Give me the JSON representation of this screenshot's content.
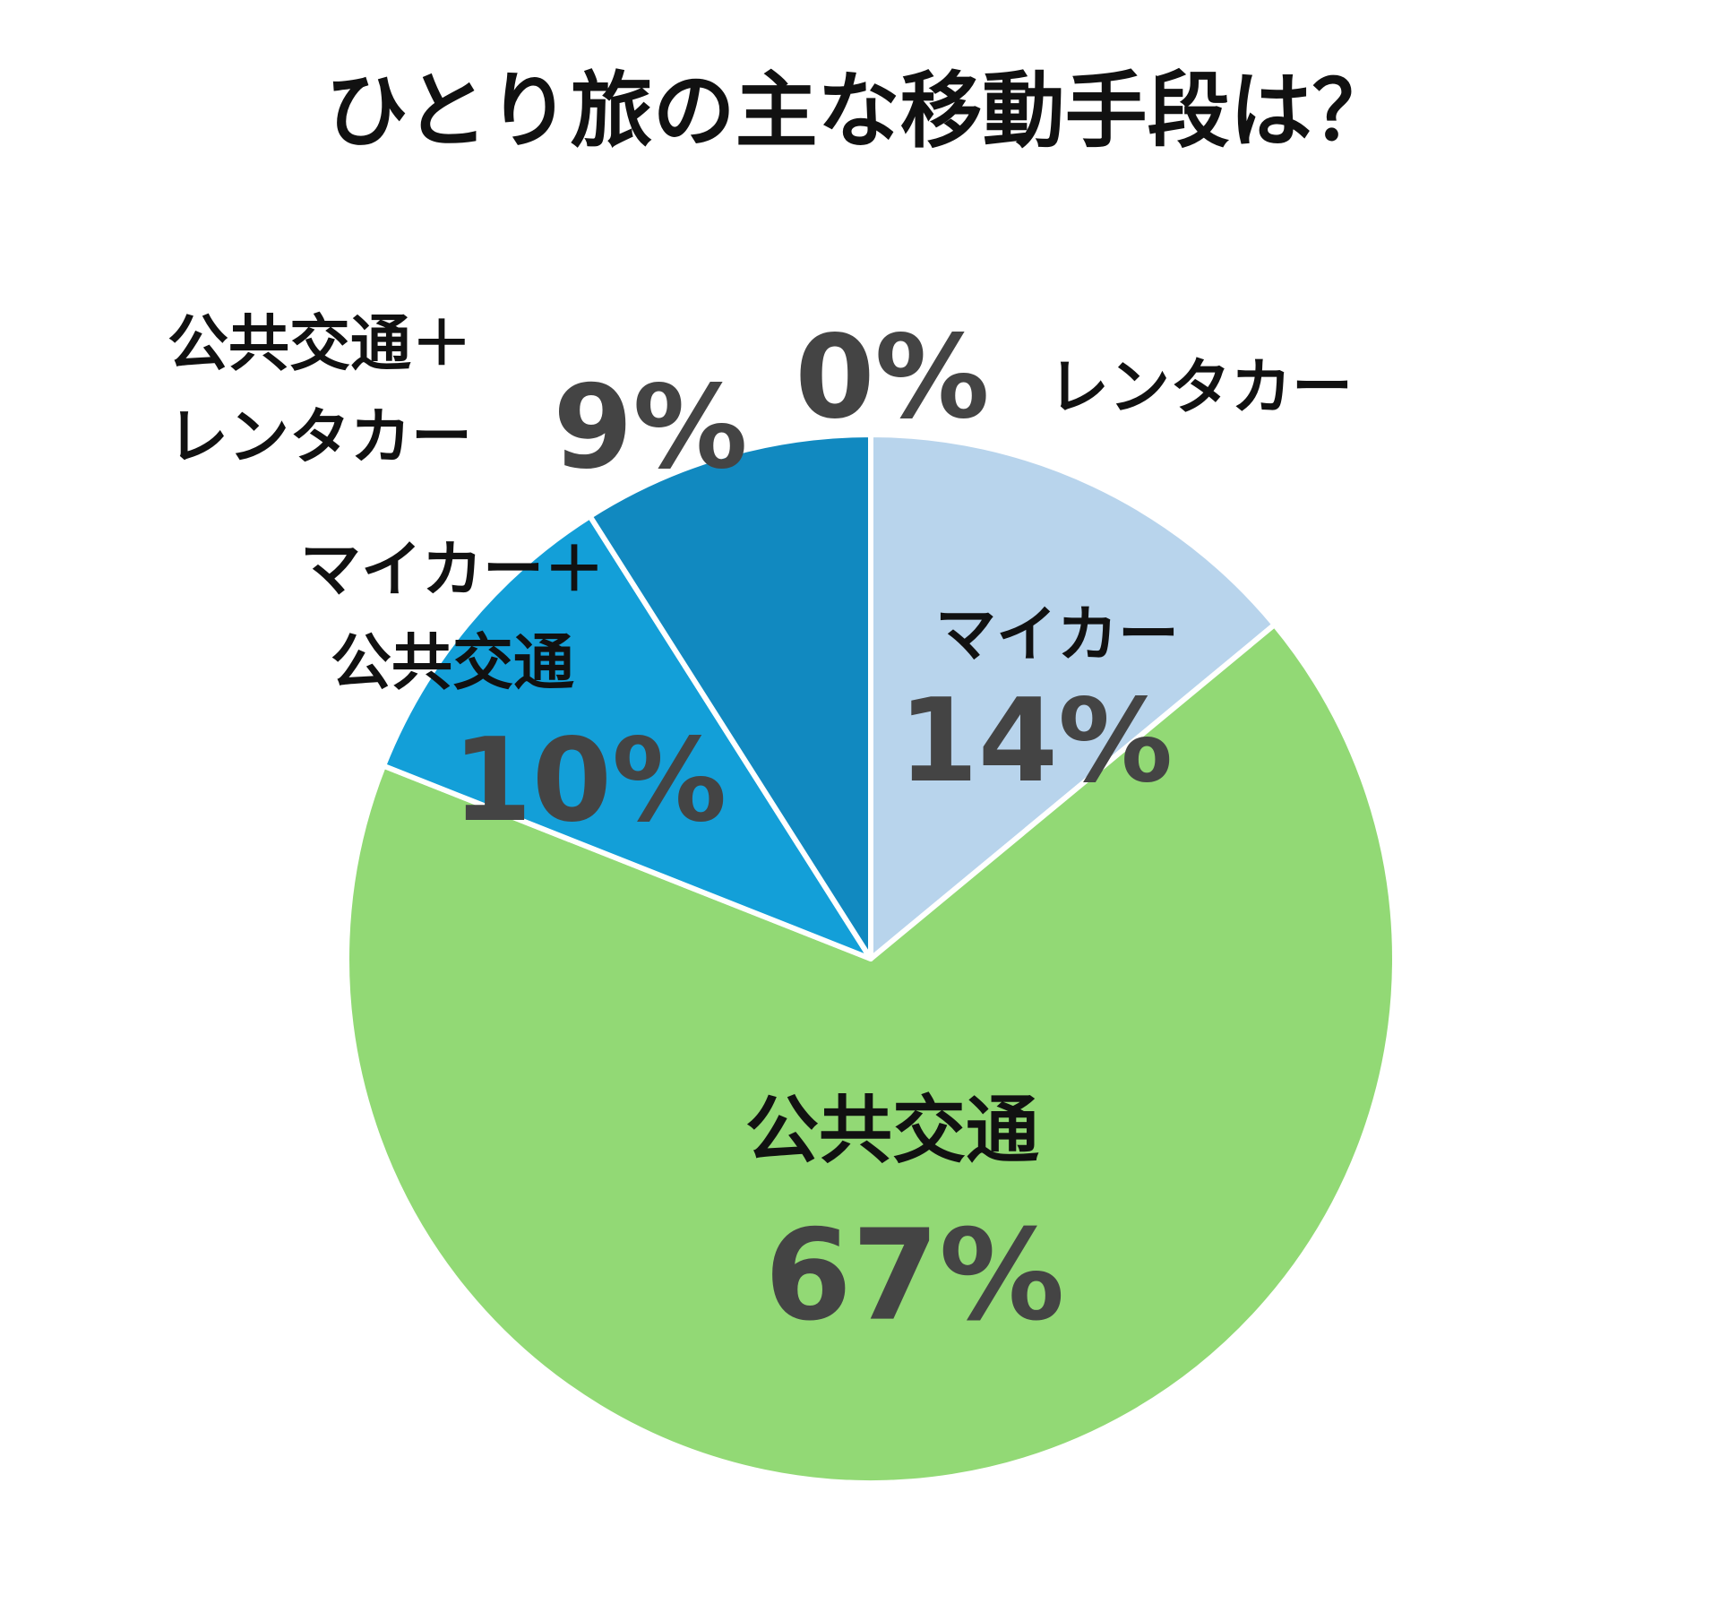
{
  "chart_data": {
    "type": "pie",
    "title": "ひとり旅の主な移動手段は？",
    "categories": [
      "レンタカー",
      "マイカー",
      "公共交通",
      "マイカー＋公共交通",
      "公共交通＋レンタカー"
    ],
    "values": [
      0,
      14,
      67,
      10,
      9
    ],
    "value_labels": [
      "0%",
      "14%",
      "67%",
      "10%",
      "9%"
    ],
    "colors": [
      "#9ec4e6",
      "#b8d4ec",
      "#92d975",
      "#139fd8",
      "#1189c0"
    ]
  }
}
